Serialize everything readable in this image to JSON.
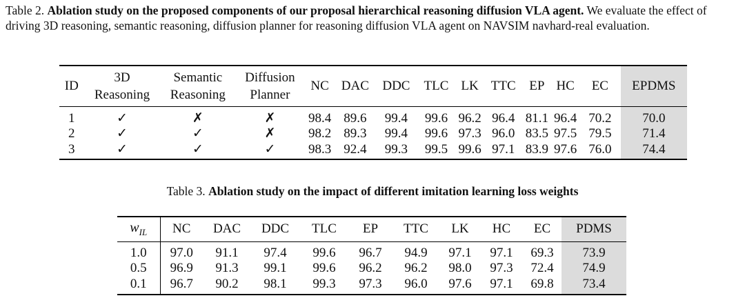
{
  "table2": {
    "label": "Table 2.",
    "title": "Ablation study on the proposed components of our proposal hierarchical reasoning diffusion VLA agent.",
    "description": "We evaluate the effect of driving 3D reasoning, semantic reasoning, diffusion planner for reasoning diffusion VLA agent on NAVSIM navhard-real evaluation.",
    "headers": {
      "id": "ID",
      "reasoning3d": [
        "3D",
        "Reasoning"
      ],
      "semantic": [
        "Semantic",
        "Reasoning"
      ],
      "diffusion": [
        "Diffusion",
        "Planner"
      ],
      "metrics": [
        "NC",
        "DAC",
        "DDC",
        "TLC",
        "LK",
        "TTC",
        "EP",
        "HC",
        "EC"
      ],
      "score": "EPDMS"
    },
    "rows": [
      {
        "id": "1",
        "reasoning3d": "✓",
        "semantic": "✗",
        "diffusion": "✗",
        "metrics": [
          "98.4",
          "89.6",
          "99.4",
          "99.6",
          "96.2",
          "96.4",
          "81.1",
          "96.4",
          "70.2"
        ],
        "score": "70.0"
      },
      {
        "id": "2",
        "reasoning3d": "✓",
        "semantic": "✓",
        "diffusion": "✗",
        "metrics": [
          "98.2",
          "89.3",
          "99.4",
          "99.6",
          "97.3",
          "96.0",
          "83.5",
          "97.5",
          "79.5"
        ],
        "score": "71.4"
      },
      {
        "id": "3",
        "reasoning3d": "✓",
        "semantic": "✓",
        "diffusion": "✓",
        "metrics": [
          "98.3",
          "92.4",
          "99.3",
          "99.5",
          "99.6",
          "97.1",
          "83.9",
          "97.6",
          "76.0"
        ],
        "score": "74.4"
      }
    ]
  },
  "table3": {
    "label": "Table 3.",
    "title": "Ablation study on the impact of different imitation learning loss weights",
    "headers": {
      "weight_symbol": "w",
      "weight_subscript": "IL",
      "metrics": [
        "NC",
        "DAC",
        "DDC",
        "TLC",
        "EP",
        "TTC",
        "LK",
        "HC",
        "EC"
      ],
      "score": "PDMS"
    },
    "rows": [
      {
        "weight": "1.0",
        "metrics": [
          "97.0",
          "91.1",
          "97.4",
          "99.6",
          "96.7",
          "94.9",
          "97.1",
          "97.1",
          "69.3"
        ],
        "score": "73.9"
      },
      {
        "weight": "0.5",
        "metrics": [
          "96.9",
          "91.3",
          "99.1",
          "99.6",
          "96.2",
          "96.2",
          "98.0",
          "97.3",
          "72.4"
        ],
        "score": "74.9"
      },
      {
        "weight": "0.1",
        "metrics": [
          "96.7",
          "90.2",
          "98.1",
          "99.3",
          "97.3",
          "96.0",
          "97.6",
          "97.1",
          "69.8"
        ],
        "score": "73.4"
      }
    ]
  }
}
